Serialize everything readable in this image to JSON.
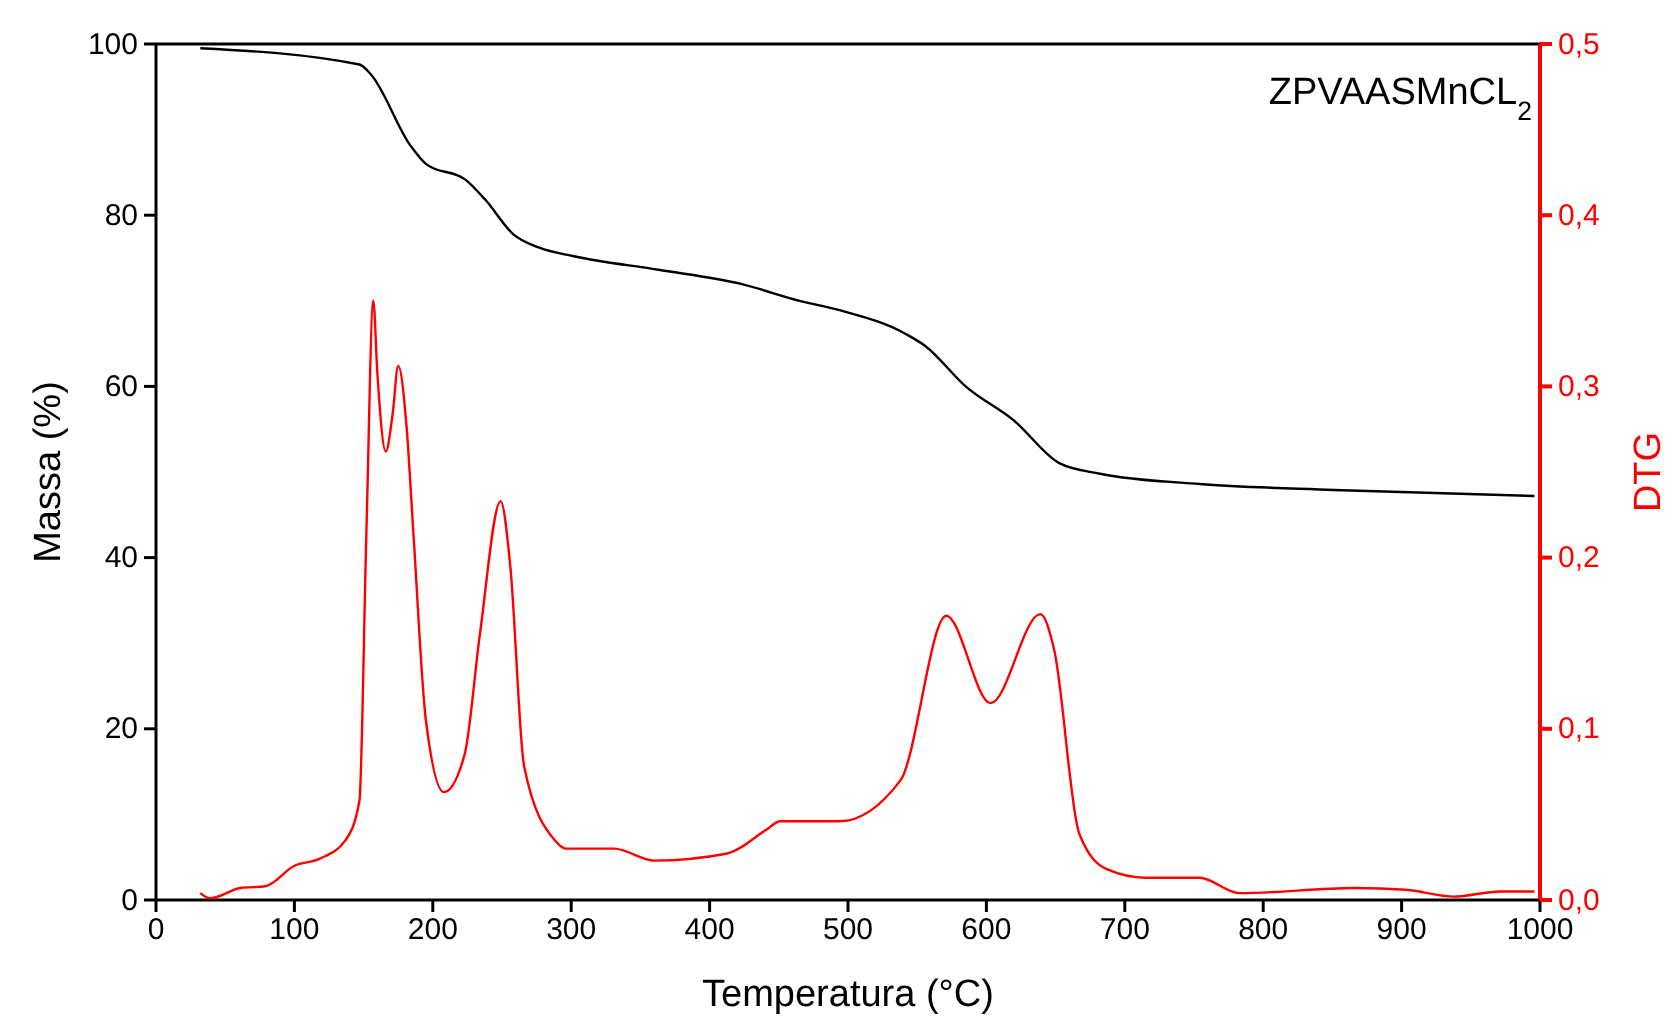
{
  "chart_data": {
    "type": "line",
    "xlabel": "Temperatura (°C)",
    "ylabel": "Massa (%)",
    "y2label": "DTG",
    "annotations": [
      "ZPVAASMnCL$_{2}$"
    ],
    "xlim": [
      0,
      1000
    ],
    "xticks": [
      0,
      100,
      200,
      300,
      400,
      500,
      600,
      700,
      800,
      900,
      1000
    ],
    "ylim": [
      0,
      100
    ],
    "yticks": [
      0,
      20,
      40,
      60,
      80,
      100
    ],
    "y2lim": [
      0,
      0.5
    ],
    "y2ticks": [
      {
        "value": 0,
        "label": "0,0"
      },
      {
        "value": 0.1,
        "label": "0,1"
      },
      {
        "value": 0.2,
        "label": "0,2"
      },
      {
        "value": 0.3,
        "label": "0,3"
      },
      {
        "value": 0.4,
        "label": "0,4"
      },
      {
        "value": 0.5,
        "label": "0,5"
      }
    ],
    "grid": false,
    "series": [
      {
        "color": "#000000",
        "x": [
          32,
          147,
          155,
          184,
          195,
          224,
          238,
          258,
          277,
          302,
          364,
          422,
          465,
          494,
          542,
          556,
          585,
          620,
          653,
          682,
          754,
          851,
          996
        ],
        "values": [
          99.5,
          97.6,
          96.5,
          88.1,
          86,
          84.1,
          81.8,
          77.8,
          76.2,
          75.2,
          73.6,
          72,
          70,
          68.9,
          66.1,
          64.7,
          60,
          56,
          51,
          49.8,
          48.6,
          47.9,
          47.2
        ]
      },
      {
        "color": "#ff0000",
        "axis": "y2",
        "x": [
          32,
          39,
          61,
          79,
          100,
          118,
          137,
          147,
          152,
          157,
          160,
          166,
          171,
          175,
          181,
          186,
          195,
          208,
          223,
          234,
          249,
          256,
          266,
          288,
          296,
          331,
          360,
          412,
          441,
          451,
          494,
          538,
          571,
          603,
          639,
          649,
          667,
          687,
          715,
          754,
          783,
          866,
          903,
          938,
          971,
          996
        ],
        "values": [
          0.004,
          0.001,
          0.007,
          0.008,
          0.02,
          0.024,
          0.035,
          0.058,
          0.214,
          0.35,
          0.307,
          0.262,
          0.284,
          0.312,
          0.277,
          0.214,
          0.105,
          0.063,
          0.085,
          0.155,
          0.233,
          0.195,
          0.078,
          0.035,
          0.03,
          0.03,
          0.023,
          0.027,
          0.041,
          0.046,
          0.046,
          0.07,
          0.166,
          0.115,
          0.167,
          0.146,
          0.039,
          0.018,
          0.013,
          0.013,
          0.004,
          0.007,
          0.006,
          0.002,
          0.005,
          0.005
        ]
      }
    ]
  }
}
